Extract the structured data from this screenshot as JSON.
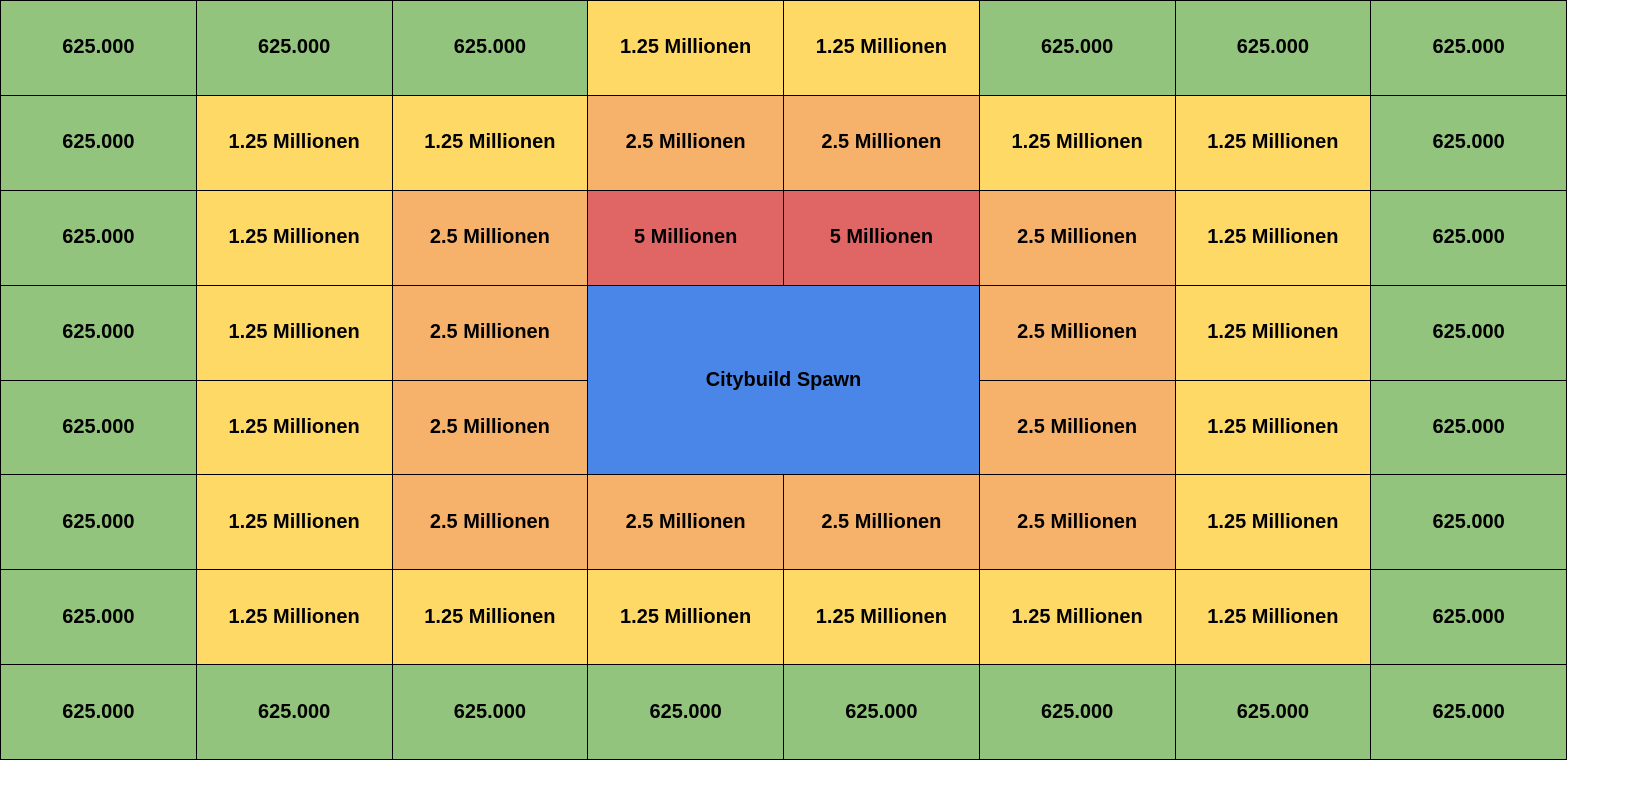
{
  "colors": {
    "green": "#93c47d",
    "yellow": "#ffd966",
    "orange": "#f6b26b",
    "red": "#e06666",
    "blue": "#4a86e8"
  },
  "center": {
    "label": "Citybuild Spawn",
    "color": "blue"
  },
  "rows": [
    [
      {
        "label": "625.000",
        "color": "green"
      },
      {
        "label": "625.000",
        "color": "green"
      },
      {
        "label": "625.000",
        "color": "green"
      },
      {
        "label": "1.25 Millionen",
        "color": "yellow"
      },
      {
        "label": "1.25 Millionen",
        "color": "yellow"
      },
      {
        "label": "625.000",
        "color": "green"
      },
      {
        "label": "625.000",
        "color": "green"
      },
      {
        "label": "625.000",
        "color": "green"
      }
    ],
    [
      {
        "label": "625.000",
        "color": "green"
      },
      {
        "label": "1.25 Millionen",
        "color": "yellow"
      },
      {
        "label": "1.25 Millionen",
        "color": "yellow"
      },
      {
        "label": "2.5 Millionen",
        "color": "orange"
      },
      {
        "label": "2.5 Millionen",
        "color": "orange"
      },
      {
        "label": "1.25 Millionen",
        "color": "yellow"
      },
      {
        "label": "1.25 Millionen",
        "color": "yellow"
      },
      {
        "label": "625.000",
        "color": "green"
      }
    ],
    [
      {
        "label": "625.000",
        "color": "green"
      },
      {
        "label": "1.25 Millionen",
        "color": "yellow"
      },
      {
        "label": "2.5 Millionen",
        "color": "orange"
      },
      {
        "label": "5 Millionen",
        "color": "red"
      },
      {
        "label": "5 Millionen",
        "color": "red"
      },
      {
        "label": "2.5 Millionen",
        "color": "orange"
      },
      {
        "label": "1.25 Millionen",
        "color": "yellow"
      },
      {
        "label": "625.000",
        "color": "green"
      }
    ],
    [
      {
        "label": "625.000",
        "color": "green"
      },
      {
        "label": "1.25 Millionen",
        "color": "yellow"
      },
      {
        "label": "2.5 Millionen",
        "color": "orange"
      },
      null,
      null,
      {
        "label": "2.5 Millionen",
        "color": "orange"
      },
      {
        "label": "1.25 Millionen",
        "color": "yellow"
      },
      {
        "label": "625.000",
        "color": "green"
      }
    ],
    [
      {
        "label": "625.000",
        "color": "green"
      },
      {
        "label": "1.25 Millionen",
        "color": "yellow"
      },
      {
        "label": "2.5 Millionen",
        "color": "orange"
      },
      null,
      null,
      {
        "label": "2.5 Millionen",
        "color": "orange"
      },
      {
        "label": "1.25 Millionen",
        "color": "yellow"
      },
      {
        "label": "625.000",
        "color": "green"
      }
    ],
    [
      {
        "label": "625.000",
        "color": "green"
      },
      {
        "label": "1.25 Millionen",
        "color": "yellow"
      },
      {
        "label": "2.5 Millionen",
        "color": "orange"
      },
      {
        "label": "2.5 Millionen",
        "color": "orange"
      },
      {
        "label": "2.5 Millionen",
        "color": "orange"
      },
      {
        "label": "2.5 Millionen",
        "color": "orange"
      },
      {
        "label": "1.25 Millionen",
        "color": "yellow"
      },
      {
        "label": "625.000",
        "color": "green"
      }
    ],
    [
      {
        "label": "625.000",
        "color": "green"
      },
      {
        "label": "1.25 Millionen",
        "color": "yellow"
      },
      {
        "label": "1.25 Millionen",
        "color": "yellow"
      },
      {
        "label": "1.25 Millionen",
        "color": "yellow"
      },
      {
        "label": "1.25 Millionen",
        "color": "yellow"
      },
      {
        "label": "1.25 Millionen",
        "color": "yellow"
      },
      {
        "label": "1.25 Millionen",
        "color": "yellow"
      },
      {
        "label": "625.000",
        "color": "green"
      }
    ],
    [
      {
        "label": "625.000",
        "color": "green"
      },
      {
        "label": "625.000",
        "color": "green"
      },
      {
        "label": "625.000",
        "color": "green"
      },
      {
        "label": "625.000",
        "color": "green"
      },
      {
        "label": "625.000",
        "color": "green"
      },
      {
        "label": "625.000",
        "color": "green"
      },
      {
        "label": "625.000",
        "color": "green"
      },
      {
        "label": "625.000",
        "color": "green"
      }
    ]
  ]
}
